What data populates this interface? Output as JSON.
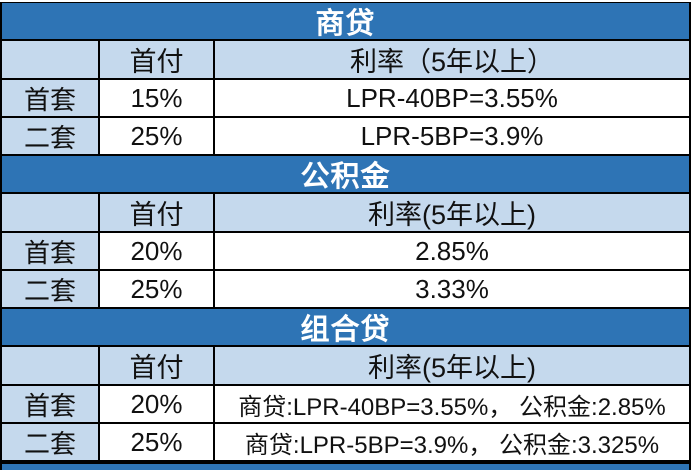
{
  "colors": {
    "section_title_bg": "#2E74B5",
    "header_row_bg": "#C5D9ED",
    "row_label_bg": "#C5D9ED",
    "data_cell_bg": "#FFFFFF",
    "title_text": "#FFFFFF",
    "body_text": "#111111",
    "grid_border": "#000000"
  },
  "sections": [
    {
      "title": "商贷",
      "columns": [
        "",
        "首付",
        "利率（5年以上）"
      ],
      "rows": [
        {
          "label": "首套",
          "down_payment": "15%",
          "rate": "LPR-40BP=3.55%"
        },
        {
          "label": "二套",
          "down_payment": "25%",
          "rate": "LPR-5BP=3.9%"
        }
      ]
    },
    {
      "title": "公积金",
      "columns": [
        "",
        "首付",
        "利率(5年以上)"
      ],
      "rows": [
        {
          "label": "首套",
          "down_payment": "20%",
          "rate": "2.85%"
        },
        {
          "label": "二套",
          "down_payment": "25%",
          "rate": "3.33%"
        }
      ]
    },
    {
      "title": "组合贷",
      "columns": [
        "",
        "首付",
        "利率(5年以上)"
      ],
      "rows": [
        {
          "label": "首套",
          "down_payment": "20%",
          "rate": "商贷:LPR-40BP=3.55%， 公积金:2.85%"
        },
        {
          "label": "二套",
          "down_payment": "25%",
          "rate": "商贷:LPR-5BP=3.9%， 公积金:3.325%"
        }
      ]
    }
  ],
  "chart_data": [
    {
      "type": "table",
      "title": "商贷",
      "columns": [
        "",
        "首付",
        "利率（5年以上）"
      ],
      "rows": [
        [
          "首套",
          "15%",
          "LPR-40BP=3.55%"
        ],
        [
          "二套",
          "25%",
          "LPR-5BP=3.9%"
        ]
      ]
    },
    {
      "type": "table",
      "title": "公积金",
      "columns": [
        "",
        "首付",
        "利率(5年以上)"
      ],
      "rows": [
        [
          "首套",
          "20%",
          "2.85%"
        ],
        [
          "二套",
          "25%",
          "3.33%"
        ]
      ]
    },
    {
      "type": "table",
      "title": "组合贷",
      "columns": [
        "",
        "首付",
        "利率(5年以上)"
      ],
      "rows": [
        [
          "首套",
          "20%",
          "商贷:LPR-40BP=3.55%， 公积金:2.85%"
        ],
        [
          "二套",
          "25%",
          "商贷:LPR-5BP=3.9%， 公积金:3.325%"
        ]
      ]
    }
  ]
}
